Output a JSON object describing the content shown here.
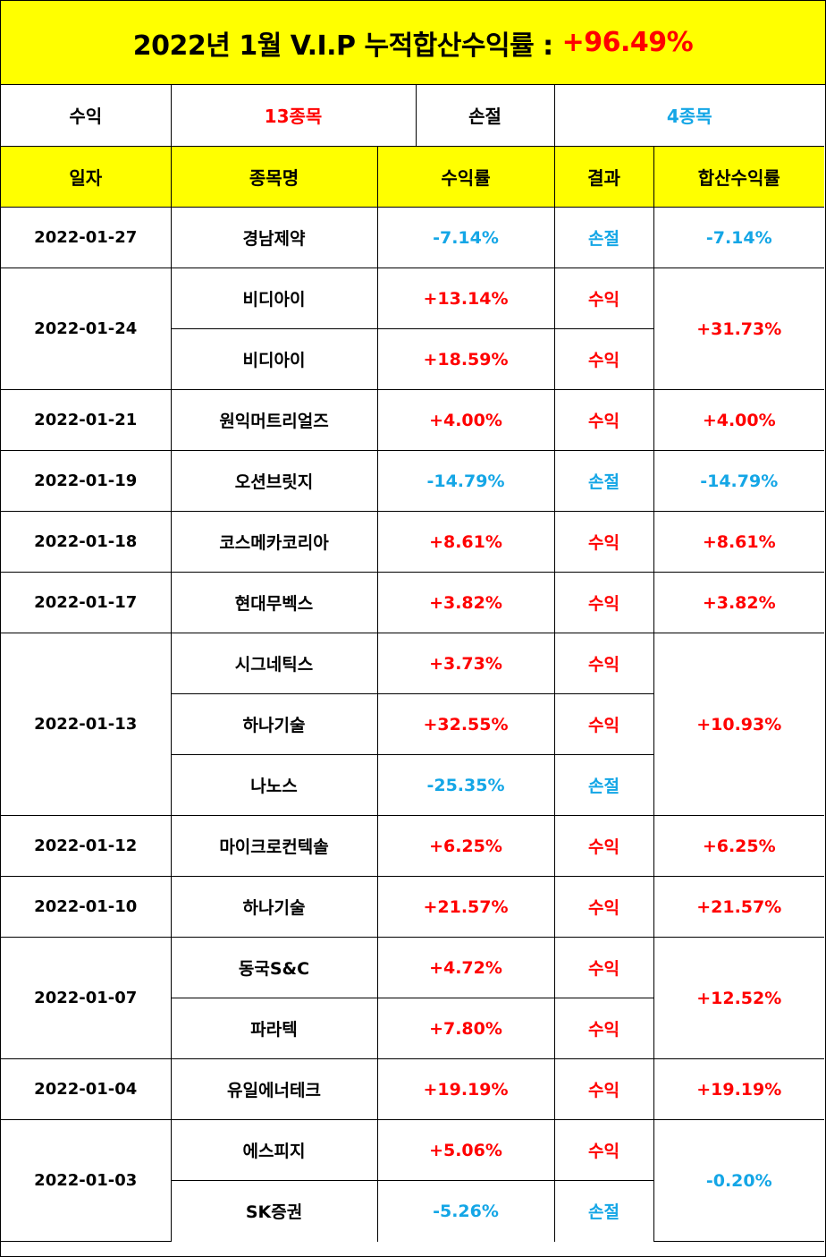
{
  "title": {
    "text": "2022년 1월 V.I.P 누적합산수익률 :",
    "total": "+96.49%"
  },
  "summary": {
    "profit_label": "수익",
    "profit_value": "13종목",
    "loss_label": "손절",
    "loss_value": "4종목"
  },
  "headers": [
    "일자",
    "종목명",
    "수익률",
    "결과",
    "합산수익률"
  ],
  "colors": {
    "highlight": "#ffff00",
    "positive": "#ff0000",
    "negative": "#14a6e6"
  },
  "groups": [
    {
      "date": "2022-01-27",
      "total": "-7.14%",
      "items": [
        {
          "name": "경남제약",
          "rate": "-7.14%",
          "result": "손절"
        }
      ]
    },
    {
      "date": "2022-01-24",
      "total": "+31.73%",
      "items": [
        {
          "name": "비디아이",
          "rate": "+13.14%",
          "result": "수익"
        },
        {
          "name": "비디아이",
          "rate": "+18.59%",
          "result": "수익"
        }
      ]
    },
    {
      "date": "2022-01-21",
      "total": "+4.00%",
      "items": [
        {
          "name": "원익머트리얼즈",
          "rate": "+4.00%",
          "result": "수익"
        }
      ]
    },
    {
      "date": "2022-01-19",
      "total": "-14.79%",
      "items": [
        {
          "name": "오션브릿지",
          "rate": "-14.79%",
          "result": "손절"
        }
      ]
    },
    {
      "date": "2022-01-18",
      "total": "+8.61%",
      "items": [
        {
          "name": "코스메카코리아",
          "rate": "+8.61%",
          "result": "수익"
        }
      ]
    },
    {
      "date": "2022-01-17",
      "total": "+3.82%",
      "items": [
        {
          "name": "현대무벡스",
          "rate": "+3.82%",
          "result": "수익"
        }
      ]
    },
    {
      "date": "2022-01-13",
      "total": "+10.93%",
      "items": [
        {
          "name": "시그네틱스",
          "rate": "+3.73%",
          "result": "수익"
        },
        {
          "name": "하나기술",
          "rate": "+32.55%",
          "result": "수익"
        },
        {
          "name": "나노스",
          "rate": "-25.35%",
          "result": "손절"
        }
      ]
    },
    {
      "date": "2022-01-12",
      "total": "+6.25%",
      "items": [
        {
          "name": "마이크로컨텍솔",
          "rate": "+6.25%",
          "result": "수익"
        }
      ]
    },
    {
      "date": "2022-01-10",
      "total": "+21.57%",
      "items": [
        {
          "name": "하나기술",
          "rate": "+21.57%",
          "result": "수익"
        }
      ]
    },
    {
      "date": "2022-01-07",
      "total": "+12.52%",
      "items": [
        {
          "name": "동국S&C",
          "rate": "+4.72%",
          "result": "수익"
        },
        {
          "name": "파라텍",
          "rate": "+7.80%",
          "result": "수익"
        }
      ]
    },
    {
      "date": "2022-01-04",
      "total": "+19.19%",
      "items": [
        {
          "name": "유일에너테크",
          "rate": "+19.19%",
          "result": "수익"
        }
      ]
    },
    {
      "date": "2022-01-03",
      "total": "-0.20%",
      "items": [
        {
          "name": "에스피지",
          "rate": "+5.06%",
          "result": "수익"
        },
        {
          "name": "SK증권",
          "rate": "-5.26%",
          "result": "손절"
        }
      ]
    }
  ]
}
